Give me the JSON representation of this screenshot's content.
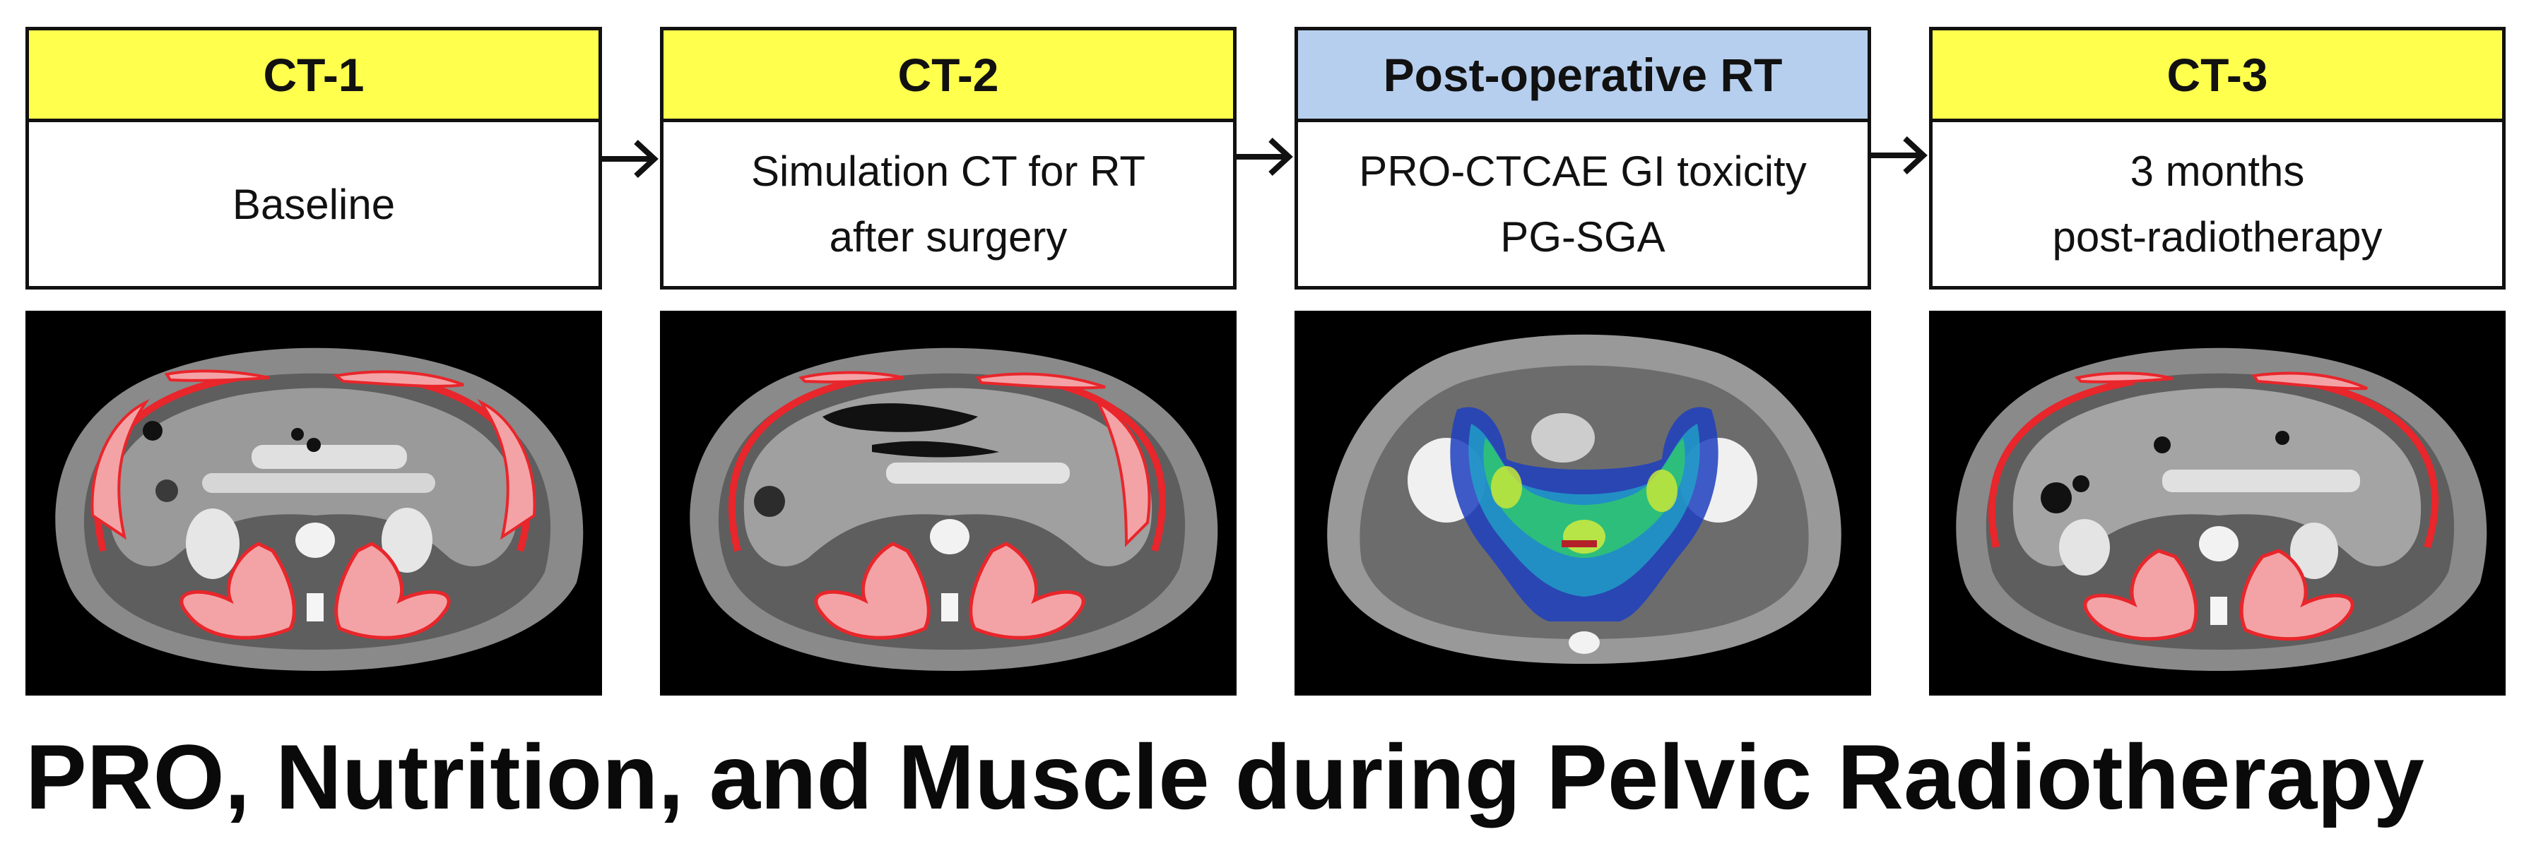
{
  "stages": [
    {
      "header": "CT-1",
      "lines": [
        "Baseline"
      ],
      "header_color": "#ffff4d"
    },
    {
      "header": "CT-2",
      "lines": [
        "Simulation CT for RT",
        "after surgery"
      ],
      "header_color": "#ffff4d"
    },
    {
      "header": "Post-operative RT",
      "lines": [
        "PRO-CTCAE GI toxicity",
        "PG-SGA"
      ],
      "header_color": "#b7cfee"
    },
    {
      "header": "CT-3",
      "lines": [
        "3 months",
        "post-radiotherapy"
      ],
      "header_color": "#ffff4d"
    }
  ],
  "scans": [
    {
      "icon": "ct-axial-muscle-segmentation-icon"
    },
    {
      "icon": "ct-axial-muscle-segmentation-icon"
    },
    {
      "icon": "ct-pelvis-dose-heatmap-icon"
    },
    {
      "icon": "ct-axial-muscle-segmentation-icon"
    }
  ],
  "title": "PRO, Nutrition, and Muscle during Pelvic Radiotherapy",
  "colors": {
    "segmentation": "#e8262b",
    "segmentation_fill": "#f3a3a6",
    "scan_background": "#000000"
  }
}
